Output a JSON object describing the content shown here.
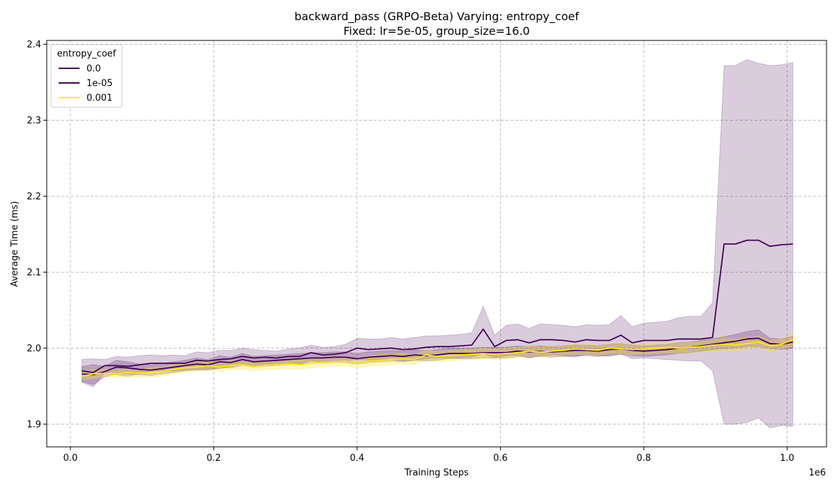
{
  "chart_data": {
    "type": "line",
    "title": "backward_pass (GRPO-Beta) Varying: entropy_coef",
    "subtitle": "Fixed: lr=5e-05, group_size=16.0",
    "xlabel": "Training Steps",
    "ylabel": "Average Time (ms)",
    "x_offset_label": "1e6",
    "xlim": [
      -33000,
      1055000
    ],
    "ylim": [
      1.87,
      2.405
    ],
    "x_ticks": [
      0,
      200000,
      400000,
      600000,
      800000,
      1000000
    ],
    "x_tick_labels": [
      "0.0",
      "0.2",
      "0.4",
      "0.6",
      "0.8",
      "1.0"
    ],
    "y_ticks": [
      1.9,
      2.0,
      2.1,
      2.2,
      2.3,
      2.4
    ],
    "y_tick_labels": [
      "1.9",
      "2.0",
      "2.1",
      "2.2",
      "2.3",
      "2.4"
    ],
    "grid": true,
    "legend": {
      "title": "entropy_coef",
      "placement": "top-left"
    },
    "x": [
      16000,
      32000,
      48000,
      64000,
      80000,
      96000,
      112000,
      128000,
      144000,
      160000,
      176000,
      192000,
      208000,
      224000,
      240000,
      256000,
      272000,
      288000,
      304000,
      320000,
      336000,
      352000,
      368000,
      384000,
      400000,
      416000,
      432000,
      448000,
      464000,
      480000,
      496000,
      512000,
      528000,
      544000,
      560000,
      576000,
      592000,
      608000,
      624000,
      640000,
      656000,
      672000,
      688000,
      704000,
      720000,
      736000,
      752000,
      768000,
      784000,
      800000,
      816000,
      832000,
      848000,
      864000,
      880000,
      896000,
      912000,
      928000,
      944000,
      960000,
      976000,
      992000,
      1008000
    ],
    "series": [
      {
        "name": "0.0",
        "color": "#440154",
        "values": [
          1.966,
          1.965,
          1.969,
          1.975,
          1.974,
          1.972,
          1.971,
          1.973,
          1.975,
          1.977,
          1.979,
          1.978,
          1.982,
          1.981,
          1.985,
          1.982,
          1.983,
          1.984,
          1.985,
          1.986,
          1.987,
          1.987,
          1.988,
          1.988,
          1.986,
          1.988,
          1.989,
          1.99,
          1.989,
          1.991,
          1.99,
          1.991,
          1.993,
          1.993,
          1.993,
          1.994,
          1.994,
          1.994,
          1.996,
          1.995,
          1.996,
          1.995,
          1.996,
          1.997,
          1.997,
          1.996,
          1.998,
          1.999,
          1.997,
          1.996,
          1.997,
          1.998,
          2.0,
          2.001,
          2.003,
          2.005,
          2.007,
          2.009,
          2.012,
          2.013,
          2.006,
          2.005,
          2.008
        ],
        "band_lower": [
          1.956,
          1.952,
          1.962,
          1.966,
          1.966,
          1.965,
          1.964,
          1.966,
          1.968,
          1.97,
          1.971,
          1.971,
          1.974,
          1.974,
          1.977,
          1.975,
          1.976,
          1.977,
          1.978,
          1.979,
          1.98,
          1.98,
          1.981,
          1.981,
          1.979,
          1.981,
          1.982,
          1.983,
          1.982,
          1.984,
          1.983,
          1.984,
          1.986,
          1.986,
          1.986,
          1.987,
          1.987,
          1.987,
          1.989,
          1.988,
          1.989,
          1.988,
          1.989,
          1.99,
          1.99,
          1.989,
          1.991,
          1.992,
          1.99,
          1.989,
          1.99,
          1.991,
          1.993,
          1.994,
          1.996,
          1.998,
          1.999,
          2.0,
          2.002,
          2.002,
          1.999,
          1.998,
          2.0
        ],
        "band_upper": [
          1.976,
          1.978,
          1.976,
          1.984,
          1.982,
          1.979,
          1.978,
          1.98,
          1.982,
          1.984,
          1.987,
          1.985,
          1.99,
          1.988,
          1.993,
          1.989,
          1.99,
          1.991,
          1.992,
          1.993,
          1.994,
          1.994,
          1.995,
          1.995,
          1.993,
          1.995,
          1.996,
          1.997,
          1.996,
          1.998,
          1.997,
          1.998,
          2.0,
          2.0,
          2.0,
          2.001,
          2.001,
          2.001,
          2.003,
          2.002,
          2.003,
          2.002,
          2.003,
          2.004,
          2.004,
          2.003,
          2.005,
          2.006,
          2.004,
          2.003,
          2.004,
          2.005,
          2.007,
          2.008,
          2.01,
          2.012,
          2.015,
          2.018,
          2.022,
          2.024,
          2.013,
          2.012,
          2.016
        ]
      },
      {
        "name": "1e-05",
        "color": "#440154",
        "values": [
          1.97,
          1.968,
          1.977,
          1.977,
          1.976,
          1.978,
          1.98,
          1.98,
          1.98,
          1.98,
          1.984,
          1.983,
          1.985,
          1.986,
          1.989,
          1.987,
          1.988,
          1.987,
          1.989,
          1.989,
          1.994,
          1.991,
          1.992,
          1.994,
          2.0,
          1.998,
          1.999,
          2.0,
          1.998,
          1.999,
          2.001,
          2.002,
          2.002,
          2.003,
          2.004,
          2.025,
          2.002,
          2.01,
          2.011,
          2.007,
          2.011,
          2.011,
          2.01,
          2.008,
          2.011,
          2.01,
          2.01,
          2.017,
          2.007,
          2.01,
          2.01,
          2.01,
          2.012,
          2.012,
          2.012,
          2.014,
          2.137,
          2.137,
          2.142,
          2.142,
          2.134,
          2.136,
          2.137
        ],
        "band_lower": [
          1.955,
          1.949,
          1.968,
          1.965,
          1.963,
          1.966,
          1.97,
          1.97,
          1.97,
          1.971,
          1.972,
          1.972,
          1.973,
          1.976,
          1.978,
          1.977,
          1.979,
          1.978,
          1.979,
          1.978,
          1.984,
          1.981,
          1.982,
          1.983,
          1.986,
          1.984,
          1.985,
          1.985,
          1.983,
          1.984,
          1.986,
          1.987,
          1.987,
          1.987,
          1.988,
          1.993,
          1.987,
          1.99,
          1.991,
          1.987,
          1.99,
          1.991,
          1.99,
          1.988,
          1.992,
          1.99,
          1.989,
          1.992,
          1.986,
          1.987,
          1.986,
          1.985,
          1.984,
          1.983,
          1.983,
          1.97,
          1.9,
          1.9,
          1.902,
          1.908,
          1.895,
          1.898,
          1.897
        ],
        "band_upper": [
          1.985,
          1.986,
          1.985,
          1.989,
          1.988,
          1.99,
          1.991,
          1.99,
          1.991,
          1.99,
          1.995,
          1.994,
          1.997,
          1.997,
          2.0,
          1.998,
          1.997,
          1.996,
          1.999,
          2.0,
          2.004,
          2.001,
          2.002,
          2.005,
          2.013,
          2.012,
          2.012,
          2.014,
          2.012,
          2.014,
          2.016,
          2.016,
          2.017,
          2.018,
          2.02,
          2.055,
          2.017,
          2.03,
          2.032,
          2.026,
          2.032,
          2.031,
          2.03,
          2.028,
          2.031,
          2.03,
          2.031,
          2.043,
          2.028,
          2.033,
          2.034,
          2.035,
          2.04,
          2.042,
          2.042,
          2.06,
          2.372,
          2.372,
          2.38,
          2.375,
          2.372,
          2.373,
          2.376
        ]
      },
      {
        "name": "0.001",
        "color": "#fde725",
        "values": [
          1.963,
          1.966,
          1.967,
          1.966,
          1.968,
          1.967,
          1.968,
          1.969,
          1.972,
          1.974,
          1.975,
          1.977,
          1.975,
          1.977,
          1.978,
          1.976,
          1.977,
          1.978,
          1.979,
          1.978,
          1.98,
          1.981,
          1.982,
          1.983,
          1.98,
          1.983,
          1.984,
          1.985,
          1.986,
          1.985,
          1.991,
          1.989,
          1.99,
          1.991,
          1.992,
          1.993,
          1.992,
          1.993,
          1.994,
          1.996,
          1.995,
          1.996,
          1.997,
          1.999,
          1.998,
          1.997,
          2.0,
          1.999,
          1.998,
          1.999,
          2.0,
          2.001,
          2.0,
          2.001,
          2.002,
          2.004,
          2.005,
          2.004,
          2.006,
          2.008,
          2.003,
          2.005,
          2.011
        ],
        "band_lower": [
          1.958,
          1.96,
          1.962,
          1.961,
          1.962,
          1.962,
          1.962,
          1.963,
          1.966,
          1.968,
          1.969,
          1.971,
          1.969,
          1.971,
          1.972,
          1.97,
          1.971,
          1.972,
          1.973,
          1.972,
          1.974,
          1.975,
          1.976,
          1.977,
          1.974,
          1.976,
          1.977,
          1.978,
          1.979,
          1.978,
          1.984,
          1.982,
          1.983,
          1.984,
          1.985,
          1.986,
          1.985,
          1.986,
          1.987,
          1.989,
          1.988,
          1.989,
          1.99,
          1.992,
          1.991,
          1.99,
          1.993,
          1.992,
          1.991,
          1.992,
          1.993,
          1.994,
          1.993,
          1.994,
          1.995,
          1.997,
          1.997,
          1.996,
          1.998,
          2.0,
          1.996,
          1.998,
          2.003
        ],
        "band_upper": [
          1.968,
          1.972,
          1.972,
          1.971,
          1.974,
          1.972,
          1.974,
          1.975,
          1.978,
          1.98,
          1.981,
          1.983,
          1.981,
          1.983,
          1.984,
          1.982,
          1.983,
          1.984,
          1.985,
          1.984,
          1.986,
          1.987,
          1.988,
          1.989,
          1.986,
          1.99,
          1.991,
          1.992,
          1.993,
          1.992,
          1.998,
          1.996,
          1.997,
          1.998,
          1.999,
          2.0,
          1.999,
          2.0,
          2.001,
          2.003,
          2.002,
          2.003,
          2.004,
          2.006,
          2.005,
          2.004,
          2.007,
          2.006,
          2.005,
          2.006,
          2.007,
          2.008,
          2.007,
          2.008,
          2.009,
          2.011,
          2.013,
          2.012,
          2.014,
          2.016,
          2.01,
          2.012,
          2.019
        ]
      }
    ]
  }
}
